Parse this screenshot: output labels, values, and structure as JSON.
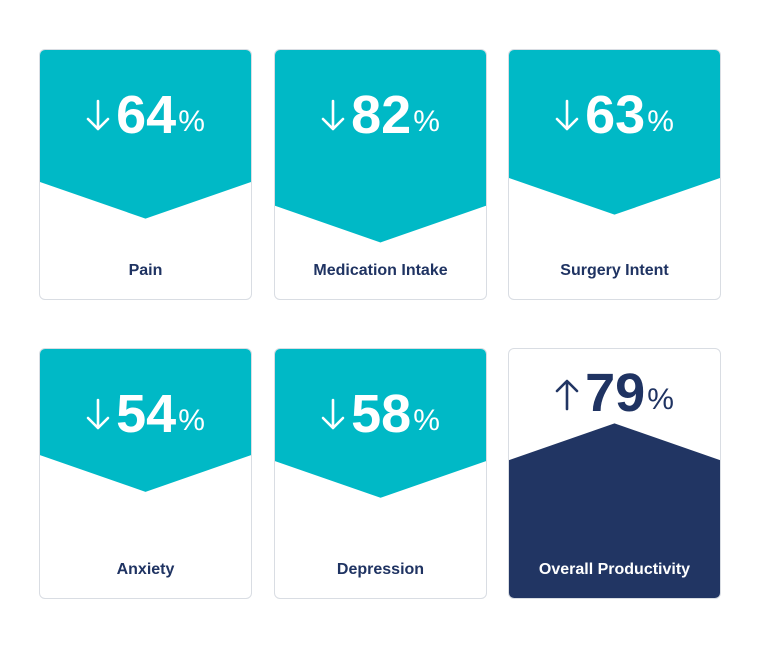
{
  "colors": {
    "teal": "#00b9c6",
    "navy": "#213563",
    "border": "#d9dde3"
  },
  "cards": [
    {
      "value": "64",
      "unit": "%",
      "direction": "down",
      "arrow_icon": "arrow-down-icon",
      "label": "Pain"
    },
    {
      "value": "82",
      "unit": "%",
      "direction": "down",
      "arrow_icon": "arrow-down-icon",
      "label": "Medication Intake"
    },
    {
      "value": "63",
      "unit": "%",
      "direction": "down",
      "arrow_icon": "arrow-down-icon",
      "label": "Surgery Intent"
    },
    {
      "value": "54",
      "unit": "%",
      "direction": "down",
      "arrow_icon": "arrow-down-icon",
      "label": "Anxiety"
    },
    {
      "value": "58",
      "unit": "%",
      "direction": "down",
      "arrow_icon": "arrow-down-icon",
      "label": "Depression"
    },
    {
      "value": "79",
      "unit": "%",
      "direction": "up",
      "arrow_icon": "arrow-up-icon",
      "label": "Overall Productivity"
    }
  ]
}
